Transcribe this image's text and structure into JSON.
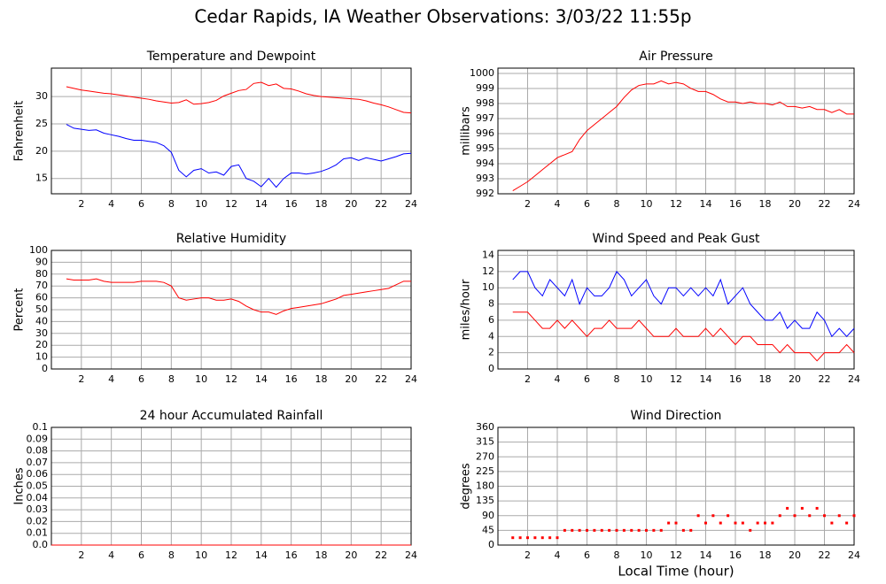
{
  "title": "Cedar Rapids, IA Weather Observations: 3/03/22 11:55p",
  "chart_data": [
    {
      "type": "line",
      "title": "Temperature and Dewpoint",
      "ylabel": "Fahrenheit",
      "x": [
        1,
        1.5,
        2,
        2.5,
        3,
        3.5,
        4,
        4.5,
        5,
        5.5,
        6,
        6.5,
        7,
        7.5,
        8,
        8.5,
        9,
        9.5,
        10,
        10.5,
        11,
        11.5,
        12,
        12.5,
        13,
        13.5,
        14,
        14.5,
        15,
        15.5,
        16,
        16.5,
        17,
        17.5,
        18,
        18.5,
        19,
        19.5,
        20,
        20.5,
        21,
        21.5,
        22,
        22.5,
        23,
        23.5,
        24
      ],
      "series": [
        {
          "color": "#ff0000",
          "values": [
            31.8,
            31.5,
            31.2,
            31.0,
            30.8,
            30.6,
            30.5,
            30.3,
            30.1,
            29.9,
            29.7,
            29.5,
            29.2,
            29.0,
            28.8,
            28.9,
            29.4,
            28.6,
            28.7,
            28.9,
            29.3,
            30.1,
            30.6,
            31.1,
            31.3,
            32.4,
            32.6,
            32.0,
            32.3,
            31.5,
            31.4,
            31.0,
            30.5,
            30.2,
            30.0,
            29.9,
            29.8,
            29.7,
            29.6,
            29.5,
            29.2,
            28.8,
            28.5,
            28.1,
            27.6,
            27.1,
            27.0
          ]
        },
        {
          "color": "#0000ff",
          "values": [
            24.9,
            24.2,
            24.0,
            23.8,
            23.9,
            23.3,
            23.0,
            22.7,
            22.3,
            22.0,
            22.0,
            21.8,
            21.6,
            21.0,
            19.8,
            16.5,
            15.3,
            16.5,
            16.8,
            16.0,
            16.2,
            15.6,
            17.2,
            17.5,
            15.0,
            14.5,
            13.5,
            15.0,
            13.4,
            15.0,
            16.0,
            16.0,
            15.8,
            16.0,
            16.3,
            16.8,
            17.5,
            18.6,
            18.8,
            18.3,
            18.8,
            18.5,
            18.2,
            18.6,
            19.0,
            19.5,
            19.6
          ]
        }
      ],
      "xlim": [
        0,
        24
      ],
      "xticks": [
        2,
        4,
        6,
        8,
        10,
        12,
        14,
        16,
        18,
        20,
        22,
        24
      ],
      "ylim": [
        12.2,
        35.2
      ],
      "yticks": [
        15,
        20,
        25,
        30
      ],
      "grid": true
    },
    {
      "type": "line",
      "title": "Air Pressure",
      "ylabel": "millibars",
      "x": [
        1,
        1.5,
        2,
        2.5,
        3,
        3.5,
        4,
        4.5,
        5,
        5.5,
        6,
        6.5,
        7,
        7.5,
        8,
        8.5,
        9,
        9.5,
        10,
        10.5,
        11,
        11.5,
        12,
        12.5,
        13,
        13.5,
        14,
        14.5,
        15,
        15.5,
        16,
        16.5,
        17,
        17.5,
        18,
        18.5,
        19,
        19.5,
        20,
        20.5,
        21,
        21.5,
        22,
        22.5,
        23,
        23.5,
        24
      ],
      "series": [
        {
          "color": "#ff0000",
          "values": [
            992.2,
            992.5,
            992.8,
            993.2,
            993.6,
            994.0,
            994.4,
            994.6,
            994.8,
            995.6,
            996.2,
            996.6,
            997.0,
            997.4,
            997.8,
            998.4,
            998.9,
            999.2,
            999.3,
            999.3,
            999.5,
            999.3,
            999.4,
            999.3,
            999.0,
            998.8,
            998.8,
            998.6,
            998.3,
            998.1,
            998.1,
            998.0,
            998.1,
            998.0,
            998.0,
            997.9,
            998.1,
            997.8,
            997.8,
            997.7,
            997.8,
            997.6,
            997.6,
            997.4,
            997.6,
            997.3,
            997.3
          ]
        }
      ],
      "xlim": [
        0,
        24
      ],
      "xticks": [
        2,
        4,
        6,
        8,
        10,
        12,
        14,
        16,
        18,
        20,
        22,
        24
      ],
      "ylim": [
        992,
        1000.35
      ],
      "yticks": [
        992,
        993,
        994,
        995,
        996,
        997,
        998,
        999,
        1000
      ],
      "grid": true
    },
    {
      "type": "line",
      "title": "Relative Humidity",
      "ylabel": "Percent",
      "x": [
        1,
        1.5,
        2,
        2.5,
        3,
        3.5,
        4,
        4.5,
        5,
        5.5,
        6,
        6.5,
        7,
        7.5,
        8,
        8.5,
        9,
        9.5,
        10,
        10.5,
        11,
        11.5,
        12,
        12.5,
        13,
        13.5,
        14,
        14.5,
        15,
        15.5,
        16,
        16.5,
        17,
        17.5,
        18,
        18.5,
        19,
        19.5,
        20,
        20.5,
        21,
        21.5,
        22,
        22.5,
        23,
        23.5,
        24
      ],
      "series": [
        {
          "color": "#ff0000",
          "values": [
            76,
            75,
            75,
            75,
            76,
            74,
            73,
            73,
            73,
            73,
            74,
            74,
            74,
            73,
            70,
            60,
            58,
            59,
            60,
            60,
            58,
            58,
            59,
            57,
            53,
            50,
            48,
            48,
            46,
            49,
            51,
            52,
            53,
            54,
            55,
            57,
            59,
            62,
            63,
            64,
            65,
            66,
            67,
            68,
            71,
            74,
            74
          ]
        }
      ],
      "xlim": [
        0,
        24
      ],
      "xticks": [
        2,
        4,
        6,
        8,
        10,
        12,
        14,
        16,
        18,
        20,
        22,
        24
      ],
      "ylim": [
        0,
        100
      ],
      "yticks": [
        0,
        10,
        20,
        30,
        40,
        50,
        60,
        70,
        80,
        90,
        100
      ],
      "grid": true
    },
    {
      "type": "line",
      "title": "Wind Speed and Peak Gust",
      "ylabel": "miles/hour",
      "x": [
        1,
        1.5,
        2,
        2.5,
        3,
        3.5,
        4,
        4.5,
        5,
        5.5,
        6,
        6.5,
        7,
        7.5,
        8,
        8.5,
        9,
        9.5,
        10,
        10.5,
        11,
        11.5,
        12,
        12.5,
        13,
        13.5,
        14,
        14.5,
        15,
        15.5,
        16,
        16.5,
        17,
        17.5,
        18,
        18.5,
        19,
        19.5,
        20,
        20.5,
        21,
        21.5,
        22,
        22.5,
        23,
        23.5,
        24
      ],
      "series": [
        {
          "color": "#0000ff",
          "values": [
            11,
            12,
            12,
            10,
            9,
            11,
            10,
            9,
            11,
            8,
            10,
            9,
            9,
            10,
            12,
            11,
            9,
            10,
            11,
            9,
            8,
            10,
            10,
            9,
            10,
            9,
            10,
            9,
            11,
            8,
            9,
            10,
            8,
            7,
            6,
            6,
            7,
            5,
            6,
            5,
            5,
            7,
            6,
            4,
            5,
            4,
            5
          ]
        },
        {
          "color": "#ff0000",
          "values": [
            7,
            7,
            7,
            6,
            5,
            5,
            6,
            5,
            6,
            5,
            4,
            5,
            5,
            6,
            5,
            5,
            5,
            6,
            5,
            4,
            4,
            4,
            5,
            4,
            4,
            4,
            5,
            4,
            5,
            4,
            3,
            4,
            4,
            3,
            3,
            3,
            2,
            3,
            2,
            2,
            2,
            1,
            2,
            2,
            2,
            3,
            2
          ]
        }
      ],
      "xlim": [
        0,
        24
      ],
      "xticks": [
        2,
        4,
        6,
        8,
        10,
        12,
        14,
        16,
        18,
        20,
        22,
        24
      ],
      "ylim": [
        0,
        14.6
      ],
      "yticks": [
        0,
        2,
        4,
        6,
        8,
        10,
        12,
        14
      ],
      "grid": true
    },
    {
      "type": "line",
      "title": "24 hour Accumulated Rainfall",
      "ylabel": "Inches",
      "x": [
        0,
        24
      ],
      "series": [
        {
          "color": "#ff0000",
          "values": [
            0,
            0
          ]
        }
      ],
      "xlim": [
        0,
        24
      ],
      "xticks": [
        2,
        4,
        6,
        8,
        10,
        12,
        14,
        16,
        18,
        20,
        22,
        24
      ],
      "ylim": [
        0,
        0.1
      ],
      "yticks": [
        {
          "value": 0,
          "label": "0.0"
        },
        0.01,
        0.02,
        0.03,
        0.04,
        0.05,
        0.06,
        0.07,
        0.08,
        0.09,
        0.1
      ],
      "grid": true
    },
    {
      "type": "scatter",
      "title": "Wind Direction",
      "ylabel": "degrees",
      "xlabel": "Local Time (hour)",
      "x": [
        1,
        1.5,
        2,
        2.5,
        3,
        3.5,
        4,
        4.5,
        5,
        5.5,
        6,
        6.5,
        7,
        7.5,
        8,
        8.5,
        9,
        9.5,
        10,
        10.5,
        11,
        11.5,
        12,
        12.5,
        13,
        13.5,
        14,
        14.5,
        15,
        15.5,
        16,
        16.5,
        17,
        17.5,
        18,
        18.5,
        19,
        19.5,
        20,
        20.5,
        21,
        21.5,
        22,
        22.5,
        23,
        23.5,
        24
      ],
      "series": [
        {
          "color": "#ff0000",
          "values": [
            22.5,
            22.5,
            22.5,
            22.5,
            22.5,
            22.5,
            22.5,
            45,
            45,
            45,
            45,
            45,
            45,
            45,
            45,
            45,
            45,
            45,
            45,
            45,
            45,
            67.5,
            67.5,
            45,
            45,
            90,
            67.5,
            90,
            67.5,
            90,
            67.5,
            67.5,
            45,
            67.5,
            67.5,
            67.5,
            90,
            112.5,
            90,
            112.5,
            90,
            112.5,
            90,
            67.5,
            90,
            67.5,
            90
          ]
        }
      ],
      "xlim": [
        0,
        24
      ],
      "xticks": [
        2,
        4,
        6,
        8,
        10,
        12,
        14,
        16,
        18,
        20,
        22,
        24
      ],
      "ylim": [
        0,
        360
      ],
      "yticks": [
        0,
        45,
        90,
        135,
        180,
        225,
        270,
        315,
        360
      ],
      "grid": true
    }
  ]
}
